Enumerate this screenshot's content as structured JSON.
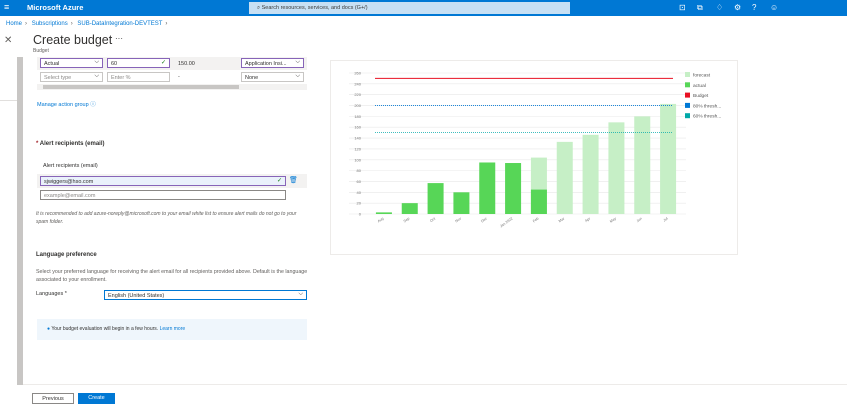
{
  "topbar": {
    "brand": "Microsoft Azure",
    "search_placeholder": "Search resources, services, and docs (G+/)"
  },
  "breadcrumb": [
    "Home",
    "Subscriptions",
    "SUB-DataIntegration-DEVTEST"
  ],
  "page": {
    "title": "Create budget",
    "more": "···",
    "subtitle": "Budget"
  },
  "alert_rows": [
    {
      "type": "Actual",
      "percent": "60",
      "amount": "150.00",
      "action_group": "Application Insi..."
    },
    {
      "type": "Select type",
      "percent": "Enter %",
      "amount": "-",
      "action_group": "None"
    }
  ],
  "manage_action_group": "Manage action group",
  "recipients": {
    "section_title": "Alert recipients (email)",
    "column_label": "Alert recipients (email)",
    "email": "sjwiggers@hso.com",
    "placeholder": "example@email.com",
    "note": "It is recommended to add azure-noreply@microsoft.com to your email white list to ensure alert mails do not go to your spam folder."
  },
  "language": {
    "title": "Language preference",
    "description": "Select your preferred language for receiving the alert email for all recipients provided above. Default is the language associated to your enrollment.",
    "label": "Languages *",
    "value": "English (United States)"
  },
  "info": {
    "text": "Your budget evaluation will begin in a few hours.",
    "link": "Learn more"
  },
  "footer": {
    "previous": "Previous",
    "create": "Create"
  },
  "chart_data": {
    "type": "bar",
    "categories": [
      "Aug",
      "Sep",
      "Oct",
      "Nov",
      "Dec",
      "Jan 2022",
      "Feb",
      "Mar",
      "Apr",
      "May",
      "Jun",
      "Jul"
    ],
    "series": [
      {
        "name": "forecast",
        "color": "#c6efc6",
        "values": [
          null,
          null,
          null,
          null,
          null,
          null,
          104,
          133,
          146,
          169,
          180,
          203
        ]
      },
      {
        "name": "actual",
        "color": "#57d657",
        "values": [
          3,
          20,
          57,
          40,
          95,
          94,
          45,
          null,
          null,
          null,
          null,
          null
        ]
      }
    ],
    "lines": [
      {
        "name": "Budget",
        "color": "#e81123",
        "value": 250,
        "style": "solid"
      },
      {
        "name": "80% thresh...",
        "color": "#0078d4",
        "value": 200,
        "style": "dotted"
      },
      {
        "name": "60% thresh...",
        "color": "#00a8a8",
        "value": 150,
        "style": "dotted"
      }
    ],
    "ylim": [
      0,
      260
    ],
    "yticks": [
      0,
      20,
      40,
      60,
      80,
      100,
      120,
      140,
      160,
      180,
      200,
      220,
      240,
      260
    ],
    "grid": true,
    "legend": "right"
  }
}
